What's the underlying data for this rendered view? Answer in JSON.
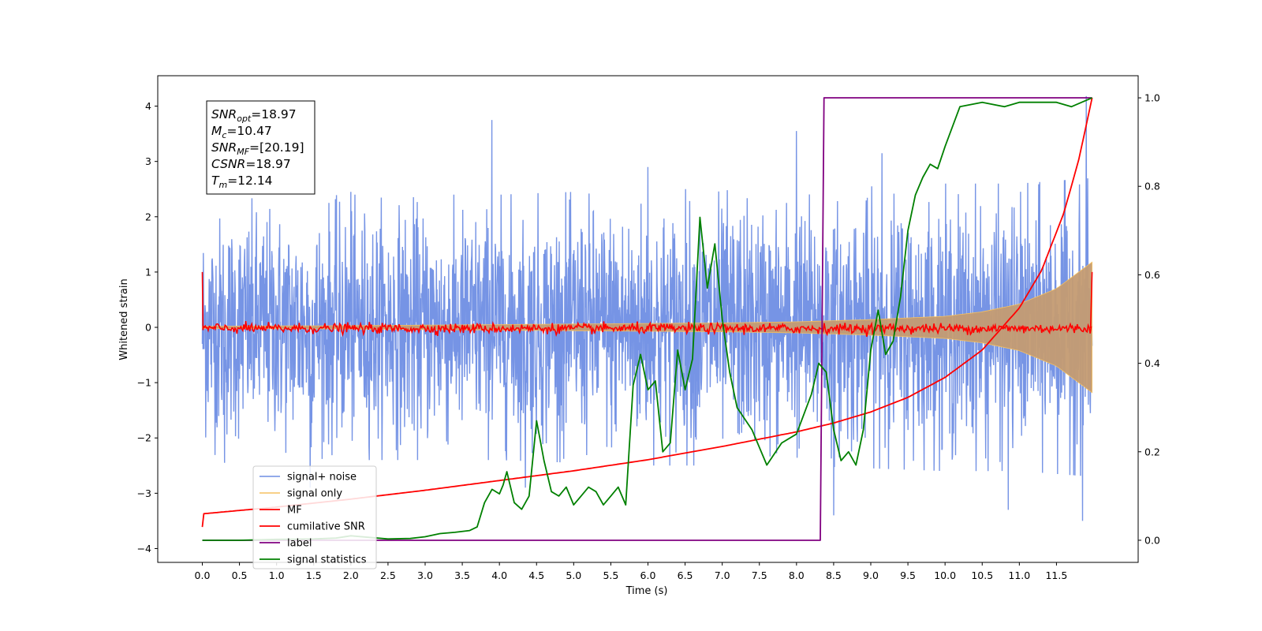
{
  "chart_data": {
    "type": "line",
    "xlabel": "Time (s)",
    "ylabel": "Whitened strain",
    "xlim": [
      -0.6,
      12.6
    ],
    "ylim": [
      -4.25,
      4.55
    ],
    "y2lim": [
      -0.05,
      1.05
    ],
    "xticks": [
      0.0,
      0.5,
      1.0,
      1.5,
      2.0,
      2.5,
      3.0,
      3.5,
      4.0,
      4.5,
      5.0,
      5.5,
      6.0,
      6.5,
      7.0,
      7.5,
      8.0,
      8.5,
      9.0,
      9.5,
      10.0,
      10.5,
      11.0,
      11.5
    ],
    "xtick_labels": [
      "0.0",
      "0.5",
      "1.0",
      "1.5",
      "2.0",
      "2.5",
      "3.0",
      "3.5",
      "4.0",
      "4.5",
      "5.0",
      "5.5",
      "6.0",
      "6.5",
      "7.0",
      "7.5",
      "8.0",
      "8.5",
      "9.0",
      "9.5",
      "10.0",
      "10.5",
      "11.0",
      "11.5"
    ],
    "yticks": [
      4,
      3,
      2,
      1,
      0,
      -1,
      -2,
      -3,
      -4
    ],
    "ytick_labels": [
      "4",
      "3",
      "2",
      "1",
      "0",
      "−1",
      "−2",
      "−3",
      "−4"
    ],
    "y2ticks": [
      1.0,
      0.8,
      0.6,
      0.4,
      0.2,
      0.0
    ],
    "y2tick_labels": [
      "1.0",
      "0.8",
      "0.6",
      "0.4",
      "0.2",
      "0.0"
    ],
    "grid": false,
    "legend_position": "lower-left",
    "annotation": [
      {
        "var": "SNR",
        "sub": "opt",
        "value": "=18.97"
      },
      {
        "var": "M",
        "sub": "c",
        "value": "=10.47"
      },
      {
        "var": "SNR",
        "sub": "MF",
        "value": "=[20.19]"
      },
      {
        "var": "CSNR",
        "sub": "",
        "value": "=18.97"
      },
      {
        "var": "T",
        "sub": "m",
        "value": "=12.14"
      }
    ],
    "series": [
      {
        "name": "signal+ noise",
        "color": "#6f8ee4",
        "axis": "left",
        "kind": "noise_band",
        "t_range": [
          0.0,
          11.98
        ],
        "envelope": {
          "t": [
            0,
            2,
            4,
            6,
            8,
            10,
            11,
            11.98
          ],
          "amp": [
            2.3,
            2.4,
            2.4,
            2.5,
            2.5,
            2.6,
            2.6,
            2.7
          ]
        },
        "peaks": [
          [
            2.0,
            2.45
          ],
          [
            3.9,
            3.75
          ],
          [
            6.0,
            2.9
          ],
          [
            8.0,
            3.55
          ],
          [
            9.15,
            3.15
          ],
          [
            11.9,
            4.18
          ],
          [
            11.85,
            -3.5
          ],
          [
            4.35,
            -2.9
          ],
          [
            8.5,
            -3.4
          ],
          [
            10.85,
            -3.3
          ],
          [
            0.3,
            -2.45
          ],
          [
            1.45,
            -2.9
          ]
        ]
      },
      {
        "name": "signal only",
        "color": "#f5c060",
        "axis": "left",
        "kind": "chirp_band",
        "t": [
          0,
          2,
          4,
          6,
          7,
          8,
          9,
          10,
          10.5,
          11,
          11.5,
          11.98
        ],
        "amp": [
          0.02,
          0.03,
          0.05,
          0.07,
          0.08,
          0.1,
          0.14,
          0.2,
          0.28,
          0.42,
          0.7,
          1.18
        ]
      },
      {
        "name": "MF",
        "color": "#ff0000",
        "axis": "left",
        "kind": "noisy_flat",
        "t_range": [
          0.0,
          11.98
        ],
        "center": -0.02,
        "amp": 0.045,
        "start_spike": 1.0,
        "end_spike": 1.0
      },
      {
        "name": "cumilative SNR",
        "color": "#ff0000",
        "axis": "right",
        "x": [
          0.0,
          0.02,
          1.0,
          2.0,
          3.0,
          4.0,
          5.0,
          6.0,
          7.0,
          8.0,
          8.5,
          9.0,
          9.5,
          10.0,
          10.5,
          11.0,
          11.3,
          11.6,
          11.8,
          11.98
        ],
        "y": [
          0.03,
          0.06,
          0.075,
          0.093,
          0.113,
          0.135,
          0.157,
          0.182,
          0.212,
          0.245,
          0.265,
          0.29,
          0.323,
          0.368,
          0.43,
          0.525,
          0.61,
          0.74,
          0.86,
          1.0
        ]
      },
      {
        "name": "label",
        "color": "#800080",
        "axis": "right",
        "x": [
          0.0,
          8.32,
          8.37,
          11.98
        ],
        "y": [
          0.0,
          0.0,
          1.0,
          1.0
        ]
      },
      {
        "name": "signal statistics",
        "color": "#008000",
        "axis": "right",
        "x": [
          0.0,
          0.5,
          1.0,
          1.5,
          1.8,
          2.0,
          2.5,
          2.8,
          3.0,
          3.2,
          3.4,
          3.6,
          3.7,
          3.8,
          3.9,
          4.0,
          4.05,
          4.1,
          4.2,
          4.3,
          4.4,
          4.5,
          4.6,
          4.7,
          4.8,
          4.9,
          5.0,
          5.1,
          5.2,
          5.3,
          5.4,
          5.5,
          5.6,
          5.7,
          5.8,
          5.9,
          6.0,
          6.1,
          6.2,
          6.3,
          6.4,
          6.5,
          6.6,
          6.7,
          6.8,
          6.9,
          7.0,
          7.1,
          7.2,
          7.4,
          7.6,
          7.8,
          8.0,
          8.2,
          8.3,
          8.4,
          8.5,
          8.6,
          8.7,
          8.8,
          8.9,
          9.0,
          9.1,
          9.2,
          9.3,
          9.4,
          9.5,
          9.6,
          9.7,
          9.8,
          9.9,
          10.0,
          10.2,
          10.5,
          10.8,
          11.0,
          11.2,
          11.5,
          11.7,
          11.98
        ],
        "y": [
          0.0,
          0.0,
          0.002,
          0.003,
          0.005,
          0.01,
          0.003,
          0.004,
          0.008,
          0.015,
          0.018,
          0.022,
          0.03,
          0.085,
          0.115,
          0.105,
          0.125,
          0.155,
          0.085,
          0.07,
          0.1,
          0.27,
          0.18,
          0.11,
          0.1,
          0.12,
          0.08,
          0.1,
          0.12,
          0.11,
          0.08,
          0.1,
          0.12,
          0.08,
          0.35,
          0.42,
          0.34,
          0.36,
          0.2,
          0.22,
          0.43,
          0.34,
          0.41,
          0.73,
          0.57,
          0.67,
          0.5,
          0.38,
          0.3,
          0.25,
          0.17,
          0.22,
          0.24,
          0.33,
          0.4,
          0.38,
          0.25,
          0.18,
          0.2,
          0.17,
          0.25,
          0.43,
          0.52,
          0.42,
          0.45,
          0.55,
          0.7,
          0.78,
          0.82,
          0.85,
          0.84,
          0.89,
          0.98,
          0.99,
          0.98,
          0.99,
          0.99,
          0.99,
          0.98,
          1.0
        ]
      }
    ]
  }
}
